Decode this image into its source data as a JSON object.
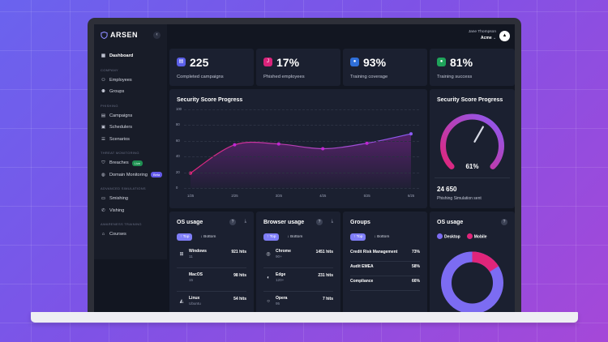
{
  "app": {
    "logo_text": "ARSEN",
    "collapse_icon": "chevron-left-icon"
  },
  "user": {
    "name": "Jane Thompson",
    "org": "Acme",
    "avatar_icon": "acme-logo"
  },
  "sidebar": {
    "dashboard": "Dashboard",
    "sections": [
      {
        "title": "COMPANY",
        "items": [
          "Employees",
          "Groups"
        ]
      },
      {
        "title": "PHISHING",
        "items": [
          "Campaigns",
          "Schedulers",
          "Scenarios"
        ]
      },
      {
        "title": "THREAT MONITORING",
        "items": [
          "Breaches",
          "Domain Monitoring"
        ],
        "badges": [
          "Live",
          "Beta"
        ]
      },
      {
        "title": "ADVANCED SIMULATIONS",
        "items": [
          "Smishing",
          "Vishing"
        ]
      },
      {
        "title": "AWARENESS TRAINING",
        "items": [
          "Courses"
        ]
      }
    ]
  },
  "stats": [
    {
      "value": "225",
      "label": "Completed campaigns",
      "icon": "document-icon",
      "color": "#5b5fe8"
    },
    {
      "value": "17%",
      "label": "Phished employees",
      "icon": "hook-icon",
      "color": "#d9237a"
    },
    {
      "value": "93%",
      "label": "Training coverage",
      "icon": "user-icon",
      "color": "#2f6fd9"
    },
    {
      "value": "81%",
      "label": "Training success",
      "icon": "check-circle-icon",
      "color": "#1fa35a"
    }
  ],
  "score_chart": {
    "title": "Security Score Progress"
  },
  "chart_data": {
    "type": "area",
    "title": "Security Score Progress",
    "x": [
      "1/25",
      "2/25",
      "3/25",
      "4/25",
      "5/25",
      "6/25"
    ],
    "x_points": [
      "1/25",
      "2/25",
      "3/25",
      "4/25",
      "5/25",
      "6/25"
    ],
    "values": [
      19,
      55,
      56,
      50,
      57,
      69
    ],
    "y_ticks": [
      0,
      20,
      40,
      60,
      80,
      100
    ],
    "ylim": [
      0,
      100
    ],
    "grid": true,
    "color": "#c026d3"
  },
  "gauge": {
    "title": "Security Score Progress",
    "value": "61%",
    "fraction": 0.61,
    "sent_value": "24 650",
    "sent_label": "Phishing Simulation sent"
  },
  "os_usage": {
    "title": "OS usage",
    "tab_top": "Top",
    "tab_bottom": "Bottom",
    "rows": [
      {
        "name": "Windows",
        "sub": "11",
        "hits": "921 hits",
        "icon": "windows-icon"
      },
      {
        "name": "MacOS",
        "sub": "15",
        "hits": "98 hits",
        "icon": "apple-icon"
      },
      {
        "name": "Linux",
        "sub": "Ubuntu",
        "hits": "54 hits",
        "icon": "linux-icon"
      }
    ]
  },
  "browser_usage": {
    "title": "Browser usage",
    "tab_top": "Top",
    "tab_bottom": "Bottom",
    "rows": [
      {
        "name": "Chrome",
        "sub": "90+",
        "hits": "1451 hits",
        "icon": "chrome-icon"
      },
      {
        "name": "Edge",
        "sub": "120+",
        "hits": "231 hits",
        "icon": "edge-icon"
      },
      {
        "name": "Opera",
        "sub": "95",
        "hits": "7 hits",
        "icon": "opera-icon"
      }
    ]
  },
  "groups": {
    "title": "Groups",
    "tab_top": "Top",
    "tab_bottom": "Bottom",
    "rows": [
      {
        "name": "Credit Risk Management",
        "value": "73%"
      },
      {
        "name": "Audit EMEA",
        "value": "58%"
      },
      {
        "name": "Compliance",
        "value": "66%"
      }
    ]
  },
  "os_donut": {
    "title": "OS usage",
    "legend": [
      "Desktop",
      "Mobile"
    ],
    "colors": [
      "#7c6cf2",
      "#e0257a"
    ],
    "desktop_fraction": 0.84
  }
}
